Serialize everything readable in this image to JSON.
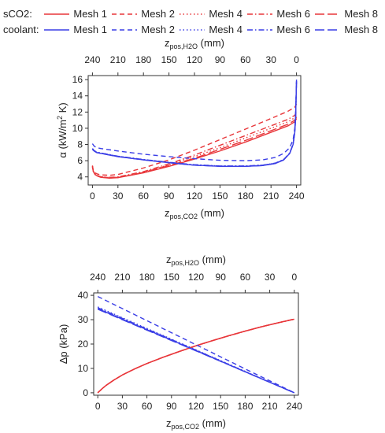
{
  "legend": {
    "rows": [
      {
        "label": "sCO2:",
        "color": "#e8363a",
        "entries": [
          {
            "name": "Mesh 1",
            "dash": "solid"
          },
          {
            "name": "Mesh 2",
            "dash": "dashed"
          },
          {
            "name": "Mesh 4",
            "dash": "dotted"
          },
          {
            "name": "Mesh 6",
            "dash": "dotdash"
          },
          {
            "name": "Mesh 8",
            "dash": "longdash"
          }
        ]
      },
      {
        "label": "coolant:",
        "color": "#3a3ee6",
        "entries": [
          {
            "name": "Mesh 1",
            "dash": "solid"
          },
          {
            "name": "Mesh 2",
            "dash": "dashed"
          },
          {
            "name": "Mesh 4",
            "dash": "dotted"
          },
          {
            "name": "Mesh 6",
            "dash": "dotdash"
          },
          {
            "name": "Mesh 8",
            "dash": "longdash"
          }
        ]
      }
    ]
  },
  "chart_data": [
    {
      "type": "line",
      "id": "alpha",
      "xlabel": {
        "main": "z",
        "sub": "pos,CO2",
        "tail": " (mm)"
      },
      "x2label": {
        "main": "z",
        "sub": "pos,H2O",
        "tail": " (mm)"
      },
      "ylabel": {
        "pre": "α (kW/m",
        "sup": "2",
        "post": " K)"
      },
      "xlim": [
        -5,
        245
      ],
      "ylim": [
        3,
        16.5
      ],
      "xticks": [
        0,
        30,
        60,
        90,
        120,
        150,
        180,
        210,
        240
      ],
      "x2ticks": [
        "240",
        "210",
        "180",
        "150",
        "120",
        "90",
        "60",
        "30",
        "0"
      ],
      "yticks": [
        4,
        6,
        8,
        10,
        12,
        14,
        16
      ],
      "series": [
        {
          "fluid": "sCO2",
          "dash": "solid",
          "color": "#e8363a",
          "x": [
            0,
            1,
            3,
            6,
            10,
            20,
            30,
            60,
            90,
            120,
            150,
            180,
            210,
            230,
            238,
            240
          ],
          "y": [
            5.3,
            4.7,
            4.3,
            4.1,
            3.95,
            3.85,
            3.9,
            4.5,
            5.3,
            6.2,
            7.2,
            8.3,
            9.5,
            10.3,
            10.8,
            11.2
          ]
        },
        {
          "fluid": "sCO2",
          "dash": "dashed",
          "color": "#e8363a",
          "x": [
            0,
            1,
            3,
            6,
            10,
            20,
            30,
            60,
            90,
            120,
            150,
            180,
            210,
            230,
            238,
            240
          ],
          "y": [
            5.4,
            4.8,
            4.5,
            4.35,
            4.25,
            4.2,
            4.3,
            5.1,
            6.1,
            7.3,
            8.6,
            9.9,
            11.2,
            12.1,
            12.6,
            13.0
          ]
        },
        {
          "fluid": "sCO2",
          "dash": "dotted",
          "color": "#e8363a",
          "x": [
            0,
            1,
            3,
            6,
            10,
            20,
            30,
            60,
            90,
            120,
            150,
            180,
            210,
            230,
            238,
            240
          ],
          "y": [
            5.3,
            4.7,
            4.35,
            4.15,
            4.0,
            3.92,
            3.98,
            4.6,
            5.5,
            6.5,
            7.6,
            8.8,
            10.0,
            10.8,
            11.3,
            11.6
          ]
        },
        {
          "fluid": "sCO2",
          "dash": "dotdash",
          "color": "#e8363a",
          "x": [
            0,
            1,
            3,
            6,
            10,
            20,
            30,
            60,
            90,
            120,
            150,
            180,
            210,
            230,
            238,
            240
          ],
          "y": [
            5.3,
            4.7,
            4.35,
            4.15,
            4.02,
            3.95,
            4.0,
            4.65,
            5.6,
            6.7,
            7.9,
            9.1,
            10.3,
            11.1,
            11.6,
            12.0
          ]
        },
        {
          "fluid": "sCO2",
          "dash": "longdash",
          "color": "#e8363a",
          "x": [
            0,
            1,
            3,
            6,
            10,
            20,
            30,
            60,
            90,
            120,
            150,
            180,
            210,
            230,
            238,
            240
          ],
          "y": [
            5.3,
            4.7,
            4.3,
            4.1,
            3.95,
            3.88,
            3.92,
            4.55,
            5.4,
            6.3,
            7.4,
            8.5,
            9.7,
            10.5,
            11.0,
            11.4
          ]
        },
        {
          "fluid": "coolant",
          "dash": "solid",
          "color": "#3a3ee6",
          "x": [
            0,
            2,
            5,
            10,
            30,
            60,
            90,
            120,
            150,
            180,
            200,
            215,
            225,
            232,
            236,
            238,
            239,
            240
          ],
          "y": [
            7.4,
            7.2,
            7.0,
            6.9,
            6.5,
            6.1,
            5.75,
            5.45,
            5.3,
            5.3,
            5.4,
            5.65,
            6.1,
            6.9,
            8.0,
            9.5,
            11.5,
            15.8
          ]
        },
        {
          "fluid": "coolant",
          "dash": "dashed",
          "color": "#3a3ee6",
          "x": [
            0,
            2,
            5,
            10,
            30,
            60,
            90,
            120,
            150,
            180,
            200,
            215,
            225,
            232,
            236,
            238,
            239,
            240
          ],
          "y": [
            8.1,
            7.8,
            7.6,
            7.5,
            7.2,
            6.8,
            6.5,
            6.25,
            6.05,
            6.0,
            6.1,
            6.4,
            6.9,
            7.6,
            8.6,
            10.0,
            12.0,
            16.0
          ]
        },
        {
          "fluid": "coolant",
          "dash": "dotted",
          "color": "#3a3ee6",
          "x": [
            0,
            2,
            5,
            10,
            30,
            60,
            90,
            120,
            150,
            180,
            200,
            215,
            225,
            232,
            236,
            238,
            239,
            240
          ],
          "y": [
            7.5,
            7.25,
            7.05,
            6.95,
            6.55,
            6.15,
            5.8,
            5.5,
            5.35,
            5.35,
            5.45,
            5.7,
            6.15,
            6.95,
            8.05,
            9.6,
            11.6,
            15.8
          ]
        },
        {
          "fluid": "coolant",
          "dash": "dotdash",
          "color": "#3a3ee6",
          "x": [
            0,
            2,
            5,
            10,
            30,
            60,
            90,
            120,
            150,
            180,
            200,
            215,
            225,
            232,
            236,
            238,
            239,
            240
          ],
          "y": [
            7.5,
            7.25,
            7.05,
            6.95,
            6.55,
            6.15,
            5.8,
            5.5,
            5.35,
            5.35,
            5.45,
            5.7,
            6.15,
            6.95,
            8.05,
            9.6,
            11.6,
            15.8
          ]
        },
        {
          "fluid": "coolant",
          "dash": "longdash",
          "color": "#3a3ee6",
          "x": [
            0,
            2,
            5,
            10,
            30,
            60,
            90,
            120,
            150,
            180,
            200,
            215,
            225,
            232,
            236,
            238,
            239,
            240
          ],
          "y": [
            7.4,
            7.2,
            7.0,
            6.9,
            6.5,
            6.1,
            5.75,
            5.45,
            5.3,
            5.3,
            5.4,
            5.65,
            6.1,
            6.9,
            8.0,
            9.5,
            11.5,
            15.8
          ]
        }
      ]
    },
    {
      "type": "line",
      "id": "dp",
      "xlabel": {
        "main": "z",
        "sub": "pos,CO2",
        "tail": " (mm)"
      },
      "x2label": {
        "main": "z",
        "sub": "pos,H2O",
        "tail": " (mm)"
      },
      "ylabel": {
        "pre": "Δp (kPa)",
        "sup": "",
        "post": ""
      },
      "xlim": [
        -5,
        245
      ],
      "ylim": [
        -1,
        41
      ],
      "xticks": [
        0,
        30,
        60,
        90,
        120,
        150,
        180,
        210,
        240
      ],
      "x2ticks": [
        "240",
        "210",
        "180",
        "150",
        "120",
        "90",
        "60",
        "30",
        "0"
      ],
      "yticks": [
        0,
        10,
        20,
        30,
        40
      ],
      "series": [
        {
          "fluid": "sCO2",
          "dash": "solid",
          "color": "#e8363a",
          "x": [
            0,
            5,
            10,
            20,
            30,
            45,
            60,
            80,
            100,
            120,
            140,
            160,
            180,
            200,
            220,
            240
          ],
          "y": [
            0,
            1.6,
            3.0,
            5.3,
            7.3,
            9.8,
            12.0,
            14.6,
            17.0,
            19.3,
            21.4,
            23.4,
            25.3,
            27.1,
            28.7,
            30.2
          ]
        },
        {
          "fluid": "sCO2",
          "dash": "dashed",
          "color": "#e8363a",
          "x": [
            0,
            5,
            10,
            20,
            30,
            45,
            60,
            80,
            100,
            120,
            140,
            160,
            180,
            200,
            220,
            240
          ],
          "y": [
            0,
            1.6,
            3.0,
            5.3,
            7.3,
            9.8,
            12.0,
            14.6,
            17.0,
            19.3,
            21.4,
            23.4,
            25.3,
            27.1,
            28.7,
            30.3
          ]
        },
        {
          "fluid": "sCO2",
          "dash": "dotted",
          "color": "#e8363a",
          "x": [
            0,
            5,
            10,
            20,
            30,
            45,
            60,
            80,
            100,
            120,
            140,
            160,
            180,
            200,
            220,
            240
          ],
          "y": [
            0,
            1.6,
            3.0,
            5.3,
            7.3,
            9.8,
            12.0,
            14.6,
            17.0,
            19.3,
            21.4,
            23.4,
            25.3,
            27.1,
            28.7,
            30.2
          ]
        },
        {
          "fluid": "sCO2",
          "dash": "dotdash",
          "color": "#e8363a",
          "x": [
            0,
            5,
            10,
            20,
            30,
            45,
            60,
            80,
            100,
            120,
            140,
            160,
            180,
            200,
            220,
            240
          ],
          "y": [
            0,
            1.6,
            3.0,
            5.3,
            7.3,
            9.8,
            12.0,
            14.6,
            17.0,
            19.3,
            21.4,
            23.4,
            25.3,
            27.1,
            28.7,
            30.2
          ]
        },
        {
          "fluid": "sCO2",
          "dash": "longdash",
          "color": "#e8363a",
          "x": [
            0,
            5,
            10,
            20,
            30,
            45,
            60,
            80,
            100,
            120,
            140,
            160,
            180,
            200,
            220,
            240
          ],
          "y": [
            0,
            1.6,
            3.0,
            5.3,
            7.3,
            9.8,
            12.0,
            14.6,
            17.0,
            19.3,
            21.4,
            23.4,
            25.3,
            27.1,
            28.7,
            30.2
          ]
        },
        {
          "fluid": "coolant",
          "dash": "solid",
          "color": "#3a3ee6",
          "x": [
            0,
            60,
            120,
            180,
            240
          ],
          "y": [
            34.5,
            25.9,
            17.3,
            8.6,
            0
          ]
        },
        {
          "fluid": "coolant",
          "dash": "dashed",
          "color": "#3a3ee6",
          "x": [
            0,
            60,
            120,
            180,
            240
          ],
          "y": [
            39.5,
            29.6,
            19.7,
            9.8,
            0
          ]
        },
        {
          "fluid": "coolant",
          "dash": "dotted",
          "color": "#3a3ee6",
          "x": [
            0,
            60,
            120,
            180,
            240
          ],
          "y": [
            35.2,
            26.4,
            17.6,
            8.8,
            0
          ]
        },
        {
          "fluid": "coolant",
          "dash": "dotdash",
          "color": "#3a3ee6",
          "x": [
            0,
            60,
            120,
            180,
            240
          ],
          "y": [
            34.9,
            26.2,
            17.5,
            8.7,
            0
          ]
        },
        {
          "fluid": "coolant",
          "dash": "longdash",
          "color": "#3a3ee6",
          "x": [
            0,
            60,
            120,
            180,
            240
          ],
          "y": [
            34.3,
            25.7,
            17.2,
            8.6,
            0
          ]
        }
      ]
    }
  ]
}
